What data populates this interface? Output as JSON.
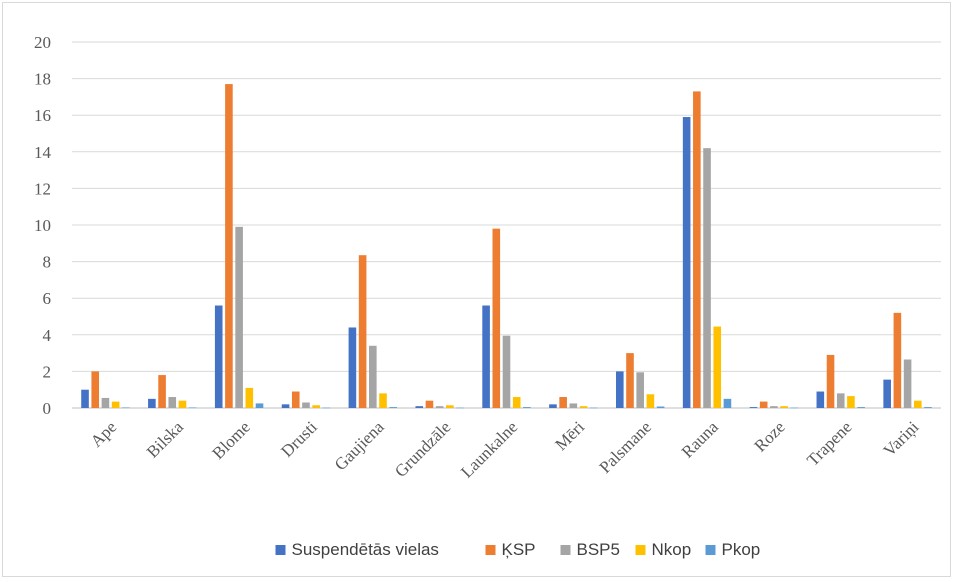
{
  "chart_data": {
    "type": "bar",
    "categories": [
      "Ape",
      "Bilska",
      "Blome",
      "Drusti",
      "Gaujiena",
      "Grundzāle",
      "Launkalne",
      "Mēri",
      "Palsmane",
      "Rauna",
      "Roze",
      "Trapene",
      "Variņi"
    ],
    "series": [
      {
        "name": "Suspendētās vielas",
        "color": "#4472C4",
        "values": [
          1.0,
          0.5,
          5.6,
          0.2,
          4.4,
          0.1,
          5.6,
          0.2,
          2.0,
          15.9,
          0.05,
          0.9,
          1.55
        ]
      },
      {
        "name": "ĶSP",
        "color": "#ED7D31",
        "values": [
          2.0,
          1.8,
          17.7,
          0.9,
          8.35,
          0.4,
          9.8,
          0.6,
          3.0,
          17.3,
          0.35,
          2.9,
          5.2
        ]
      },
      {
        "name": "BSP5",
        "color": "#A5A5A5",
        "values": [
          0.55,
          0.6,
          9.9,
          0.3,
          3.4,
          0.1,
          3.95,
          0.25,
          1.95,
          14.2,
          0.1,
          0.8,
          2.65
        ]
      },
      {
        "name": "Nkop",
        "color": "#FFC000",
        "values": [
          0.35,
          0.4,
          1.1,
          0.15,
          0.8,
          0.15,
          0.6,
          0.1,
          0.75,
          4.45,
          0.1,
          0.65,
          0.4
        ]
      },
      {
        "name": "Pkop",
        "color": "#5B9BD5",
        "values": [
          0.03,
          0.03,
          0.25,
          0.02,
          0.05,
          0.02,
          0.05,
          0.02,
          0.08,
          0.5,
          0.02,
          0.05,
          0.05
        ]
      }
    ],
    "yticks": [
      "0",
      "2",
      "4",
      "6",
      "8",
      "10",
      "12",
      "14",
      "16",
      "18",
      "20"
    ],
    "ylim": [
      0,
      20
    ],
    "grid": true,
    "legend_position": "bottom",
    "title": "",
    "xlabel": "",
    "ylabel": ""
  }
}
